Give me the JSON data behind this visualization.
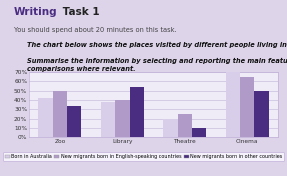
{
  "title_bold_purple": "Writing",
  "title_bold_dark": " Task 1",
  "subtitle1": "You should spend about 20 minutes on this task.",
  "subtitle2": "The chart below shows the places visited by different people living in Australia.",
  "subtitle3": "Summarise the information by selecting and reporting the main features, and make\ncomparisons where relevant.",
  "categories": [
    "Zoo",
    "Library",
    "Theatre",
    "Cinema"
  ],
  "series": [
    {
      "label": "Born in Australia",
      "color": "#d9ceea",
      "values": [
        42,
        38,
        20,
        70
      ]
    },
    {
      "label": "New migrants born in English-speaking countries",
      "color": "#b09ac8",
      "values": [
        50,
        40,
        25,
        65
      ]
    },
    {
      "label": "New migrants born in other countries",
      "color": "#4a2d80",
      "values": [
        34,
        54,
        10,
        50
      ]
    }
  ],
  "ylim": [
    0,
    70
  ],
  "yticks": [
    0,
    10,
    20,
    30,
    40,
    50,
    60,
    70
  ],
  "ytick_labels": [
    "0%",
    "10%",
    "20%",
    "30%",
    "40%",
    "50%",
    "60%",
    "70%"
  ],
  "bg_outer": "#ddd4ea",
  "bg_page": "#f5f2fb",
  "bg_chart": "#f0ecf7",
  "bar_width": 0.23,
  "title_fontsize": 7.5,
  "sub1_fontsize": 4.8,
  "sub2_fontsize": 4.8,
  "tick_fontsize": 4.2,
  "legend_fontsize": 3.5
}
